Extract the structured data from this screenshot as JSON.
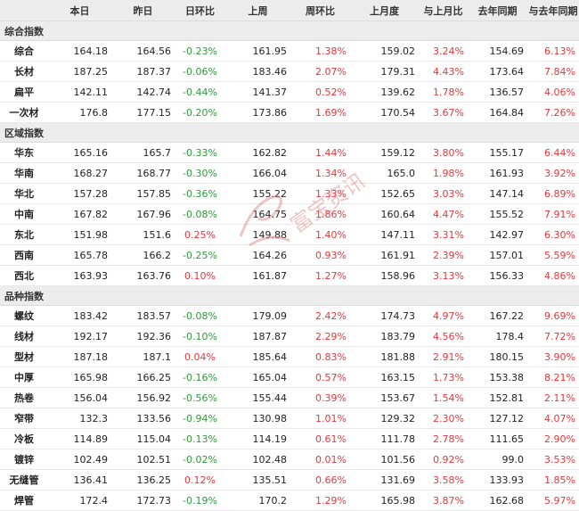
{
  "headers": [
    "",
    "本日",
    "昨日",
    "日环比",
    "上周",
    "周环比",
    "上月度",
    "与上月比",
    "去年同期",
    "与去年同期"
  ],
  "sections": [
    {
      "title": "综合指数",
      "rows": [
        {
          "name": "综合",
          "v": [
            "164.18",
            "164.56",
            "-0.23%",
            "161.95",
            "1.38%",
            "159.02",
            "3.24%",
            "154.69",
            "6.13%"
          ]
        },
        {
          "name": "长材",
          "v": [
            "187.25",
            "187.37",
            "-0.06%",
            "183.46",
            "2.07%",
            "179.31",
            "4.43%",
            "173.64",
            "7.84%"
          ]
        },
        {
          "name": "扁平",
          "v": [
            "142.11",
            "142.74",
            "-0.44%",
            "141.37",
            "0.52%",
            "139.62",
            "1.78%",
            "136.57",
            "4.06%"
          ]
        },
        {
          "name": "一次材",
          "v": [
            "176.8",
            "177.15",
            "-0.20%",
            "173.86",
            "1.69%",
            "170.54",
            "3.67%",
            "164.84",
            "7.26%"
          ]
        }
      ]
    },
    {
      "title": "区域指数",
      "rows": [
        {
          "name": "华东",
          "v": [
            "165.16",
            "165.7",
            "-0.33%",
            "162.82",
            "1.44%",
            "159.12",
            "3.80%",
            "155.17",
            "6.44%"
          ]
        },
        {
          "name": "华南",
          "v": [
            "168.27",
            "168.77",
            "-0.30%",
            "166.04",
            "1.34%",
            "165.0",
            "1.98%",
            "161.93",
            "3.92%"
          ]
        },
        {
          "name": "华北",
          "v": [
            "157.28",
            "157.85",
            "-0.36%",
            "155.22",
            "1.33%",
            "152.65",
            "3.03%",
            "147.14",
            "6.89%"
          ]
        },
        {
          "name": "中南",
          "v": [
            "167.82",
            "167.96",
            "-0.08%",
            "164.75",
            "1.86%",
            "160.64",
            "4.47%",
            "155.52",
            "7.91%"
          ]
        },
        {
          "name": "东北",
          "v": [
            "151.98",
            "151.6",
            "0.25%",
            "149.88",
            "1.40%",
            "147.11",
            "3.31%",
            "142.97",
            "6.30%"
          ]
        },
        {
          "name": "西南",
          "v": [
            "165.78",
            "166.2",
            "-0.25%",
            "164.26",
            "0.93%",
            "161.91",
            "2.39%",
            "157.01",
            "5.59%"
          ]
        },
        {
          "name": "西北",
          "v": [
            "163.93",
            "163.76",
            "0.10%",
            "161.87",
            "1.27%",
            "158.96",
            "3.13%",
            "156.33",
            "4.86%"
          ]
        }
      ]
    },
    {
      "title": "品种指数",
      "rows": [
        {
          "name": "螺纹",
          "v": [
            "183.42",
            "183.57",
            "-0.08%",
            "179.09",
            "2.42%",
            "174.73",
            "4.97%",
            "167.22",
            "9.69%"
          ]
        },
        {
          "name": "线材",
          "v": [
            "192.17",
            "192.36",
            "-0.10%",
            "187.87",
            "2.29%",
            "183.79",
            "4.56%",
            "178.4",
            "7.72%"
          ]
        },
        {
          "name": "型材",
          "v": [
            "187.18",
            "187.1",
            "0.04%",
            "185.64",
            "0.83%",
            "181.88",
            "2.91%",
            "180.15",
            "3.90%"
          ]
        },
        {
          "name": "中厚",
          "v": [
            "165.98",
            "166.25",
            "-0.16%",
            "165.04",
            "0.57%",
            "163.15",
            "1.73%",
            "153.38",
            "8.21%"
          ]
        },
        {
          "name": "热卷",
          "v": [
            "156.04",
            "156.92",
            "-0.56%",
            "155.44",
            "0.39%",
            "153.67",
            "1.54%",
            "152.81",
            "2.11%"
          ]
        },
        {
          "name": "窄带",
          "v": [
            "132.3",
            "133.56",
            "-0.94%",
            "130.98",
            "1.01%",
            "129.32",
            "2.30%",
            "127.12",
            "4.07%"
          ]
        },
        {
          "name": "冷板",
          "v": [
            "114.89",
            "115.04",
            "-0.13%",
            "114.19",
            "0.61%",
            "111.78",
            "2.78%",
            "111.65",
            "2.90%"
          ]
        },
        {
          "name": "镀锌",
          "v": [
            "102.49",
            "102.51",
            "-0.02%",
            "102.48",
            "0.01%",
            "101.56",
            "0.92%",
            "99.0",
            "3.53%"
          ]
        },
        {
          "name": "无缝管",
          "v": [
            "136.41",
            "136.25",
            "0.12%",
            "135.51",
            "0.66%",
            "131.69",
            "3.58%",
            "133.93",
            "1.85%"
          ]
        },
        {
          "name": "焊管",
          "v": [
            "172.4",
            "172.73",
            "-0.19%",
            "170.2",
            "1.29%",
            "165.98",
            "3.87%",
            "162.68",
            "5.97%"
          ]
        }
      ]
    }
  ],
  "colors": {
    "up": "#e8363a",
    "down": "#2e9a3a",
    "header_bg": "#ececec"
  },
  "watermark": "富宝资讯"
}
